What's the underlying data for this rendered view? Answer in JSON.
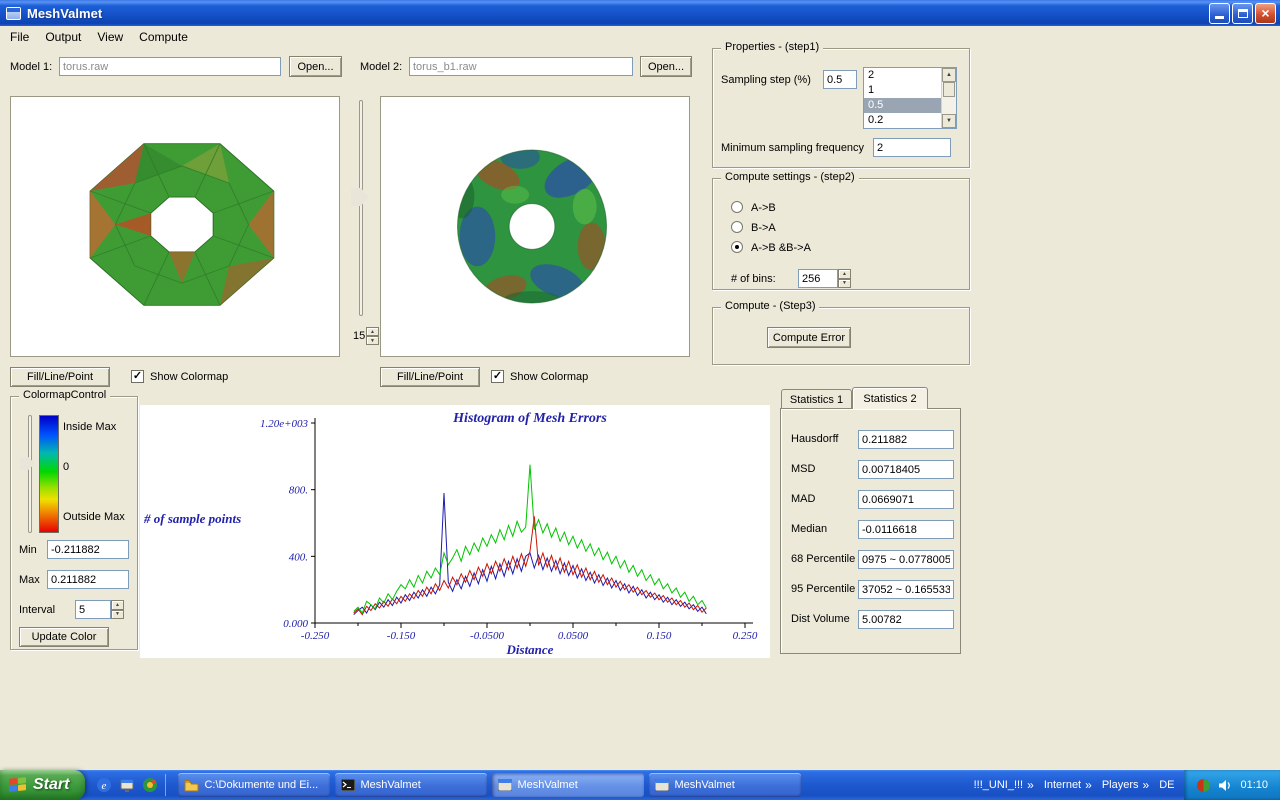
{
  "window": {
    "title": "MeshValmet"
  },
  "menu": {
    "items": [
      "File",
      "Output",
      "View",
      "Compute"
    ]
  },
  "icons": {
    "close": "×",
    "check": "✓",
    "spin_up": "▲",
    "spin_down": "▼",
    "chevron": "»"
  },
  "models": {
    "model1_label": "Model 1:",
    "model1_value": "torus.raw",
    "model2_label": "Model 2:",
    "model2_value": "torus_b1.raw",
    "open_label": "Open..."
  },
  "viewports": {
    "slider_value": "15",
    "left": {
      "fill_btn": "Fill/Line/Point",
      "colormap_label": "Show Colormap",
      "colormap_checked": true
    },
    "right": {
      "fill_btn": "Fill/Line/Point",
      "colormap_label": "Show Colormap",
      "colormap_checked": true
    }
  },
  "properties": {
    "legend": "Properties - (step1)",
    "sampling_label": "Sampling step (%)",
    "sampling_value": "0.5",
    "list_items": [
      "2",
      "1",
      "0.5",
      "0.2"
    ],
    "selected_item": "0.5",
    "min_freq_label": "Minimum sampling frequency",
    "min_freq_value": "2"
  },
  "compute_settings": {
    "legend": "Compute settings - (step2)",
    "radios": [
      {
        "label": "A->B",
        "selected": false
      },
      {
        "label": "B->A",
        "selected": false
      },
      {
        "label": "A->B &B->A",
        "selected": true
      }
    ],
    "bins_label": "# of bins:",
    "bins_value": "256"
  },
  "compute": {
    "legend": "Compute - (Step3)",
    "button_label": "Compute Error"
  },
  "colormap": {
    "legend": "ColormapControl",
    "inside_label": "Inside Max",
    "zero_label": "0",
    "outside_label": "Outside Max",
    "min_label": "Min",
    "min_value": "-0.211882",
    "max_label": "Max",
    "max_value": "0.211882",
    "interval_label": "Interval",
    "interval_value": "5",
    "update_label": "Update Color",
    "gradient_top": "#0000c8",
    "gradient_mid": "#00d800",
    "gradient_bottom": "#e80000"
  },
  "statistics": {
    "tabs": [
      "Statistics 1",
      "Statistics 2"
    ],
    "active_tab": "Statistics 2",
    "fields": [
      {
        "label": "Hausdorff",
        "value": "0.211882"
      },
      {
        "label": "MSD",
        "value": "0.00718405"
      },
      {
        "label": "MAD",
        "value": "0.0669071"
      },
      {
        "label": "Median",
        "value": "-0.0116618"
      },
      {
        "label": "68 Percentile",
        "value": "0975 ~ 0.0778005"
      },
      {
        "label": "95 Percentile",
        "value": "37052 ~ 0.165533"
      },
      {
        "label": "Dist Volume",
        "value": "5.00782"
      }
    ]
  },
  "chart_data": {
    "type": "line",
    "title": "Histogram of Mesh Errors",
    "xlabel": "Distance",
    "ylabel": "# of sample points",
    "xlim": [
      -0.25,
      0.25
    ],
    "ylim": [
      0,
      1200
    ],
    "grid": false,
    "legend_position": "none",
    "x_ticks": [
      "-0.250",
      "-0.150",
      "-0.0500",
      "0.0500",
      "0.150",
      "0.250"
    ],
    "x_tick_values": [
      -0.25,
      -0.15,
      -0.05,
      0.05,
      0.15,
      0.25
    ],
    "y_ticks": [
      "0.000",
      "400.",
      "800.",
      "1.20e+003"
    ],
    "y_tick_values": [
      0,
      400,
      800,
      1200
    ],
    "x_start": -0.205,
    "x_step": 0.005,
    "series": [
      {
        "name": "green",
        "color": "#00c400",
        "values": [
          70,
          95,
          60,
          130,
          110,
          85,
          150,
          120,
          175,
          140,
          190,
          230,
          205,
          260,
          215,
          285,
          240,
          310,
          270,
          330,
          290,
          420,
          350,
          390,
          440,
          370,
          460,
          410,
          480,
          430,
          510,
          460,
          530,
          480,
          560,
          500,
          585,
          520,
          610,
          545,
          575,
          950,
          560,
          620,
          540,
          595,
          515,
          570,
          490,
          545,
          470,
          520,
          450,
          500,
          430,
          475,
          405,
          450,
          380,
          425,
          355,
          400,
          330,
          375,
          305,
          345,
          280,
          320,
          255,
          290,
          230,
          265,
          205,
          235,
          180,
          210,
          155,
          185,
          130,
          160,
          110,
          135,
          90
        ]
      },
      {
        "name": "red",
        "color": "#cc1400",
        "values": [
          60,
          85,
          50,
          100,
          75,
          115,
          90,
          130,
          100,
          145,
          115,
          160,
          130,
          175,
          145,
          195,
          160,
          215,
          175,
          235,
          195,
          255,
          210,
          275,
          230,
          295,
          245,
          315,
          260,
          335,
          280,
          355,
          295,
          370,
          310,
          385,
          320,
          400,
          330,
          415,
          340,
          430,
          640,
          345,
          420,
          335,
          405,
          320,
          390,
          305,
          370,
          290,
          350,
          275,
          330,
          260,
          310,
          245,
          290,
          230,
          270,
          215,
          250,
          200,
          230,
          185,
          215,
          170,
          195,
          155,
          180,
          140,
          165,
          125,
          150,
          110,
          135,
          95,
          120,
          80,
          105,
          65,
          90
        ]
      },
      {
        "name": "blue",
        "color": "#1c1cb0",
        "values": [
          50,
          75,
          95,
          60,
          110,
          80,
          125,
          95,
          140,
          105,
          155,
          120,
          170,
          135,
          185,
          150,
          200,
          160,
          215,
          175,
          230,
          780,
          245,
          190,
          260,
          205,
          280,
          220,
          300,
          235,
          320,
          250,
          340,
          265,
          355,
          280,
          370,
          295,
          385,
          310,
          400,
          420,
          330,
          405,
          320,
          390,
          310,
          375,
          295,
          360,
          285,
          345,
          270,
          325,
          255,
          305,
          240,
          290,
          225,
          270,
          210,
          255,
          195,
          235,
          180,
          220,
          165,
          200,
          150,
          185,
          140,
          170,
          125,
          155,
          110,
          140,
          100,
          125,
          85,
          110,
          70,
          95,
          55
        ]
      }
    ]
  },
  "taskbar": {
    "start_label": "Start",
    "tasks": [
      {
        "label": "C:\\Dokumente und Ei...",
        "icon": "folder-icon",
        "active": false
      },
      {
        "label": "MeshValmet",
        "icon": "console-icon",
        "active": false
      },
      {
        "label": "MeshValmet",
        "icon": "app-icon",
        "active": true
      },
      {
        "label": "MeshValmet",
        "icon": "app-icon",
        "active": false
      }
    ],
    "tray": {
      "toolbar1": "!!!_UNI_!!!",
      "toolbar2": "Internet",
      "toolbar3": "Players",
      "language": "DE",
      "clock": "01:10"
    }
  }
}
